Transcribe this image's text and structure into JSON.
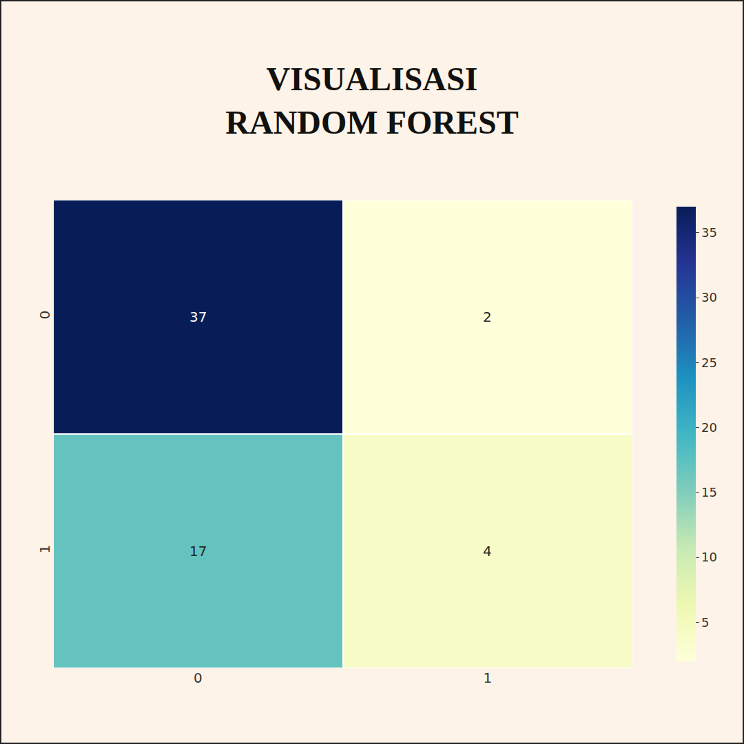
{
  "chart_data": {
    "type": "heatmap",
    "title": [
      "VISUALISASI",
      "RANDOM FOREST"
    ],
    "x": [
      "0",
      "1"
    ],
    "y": [
      "0",
      "1"
    ],
    "cells": [
      [
        37,
        2
      ],
      [
        17,
        4
      ]
    ],
    "data_labels": true,
    "colorbar": {
      "range": [
        2,
        37
      ],
      "ticks": [
        5,
        10,
        15,
        20,
        25,
        30,
        35
      ]
    }
  }
}
